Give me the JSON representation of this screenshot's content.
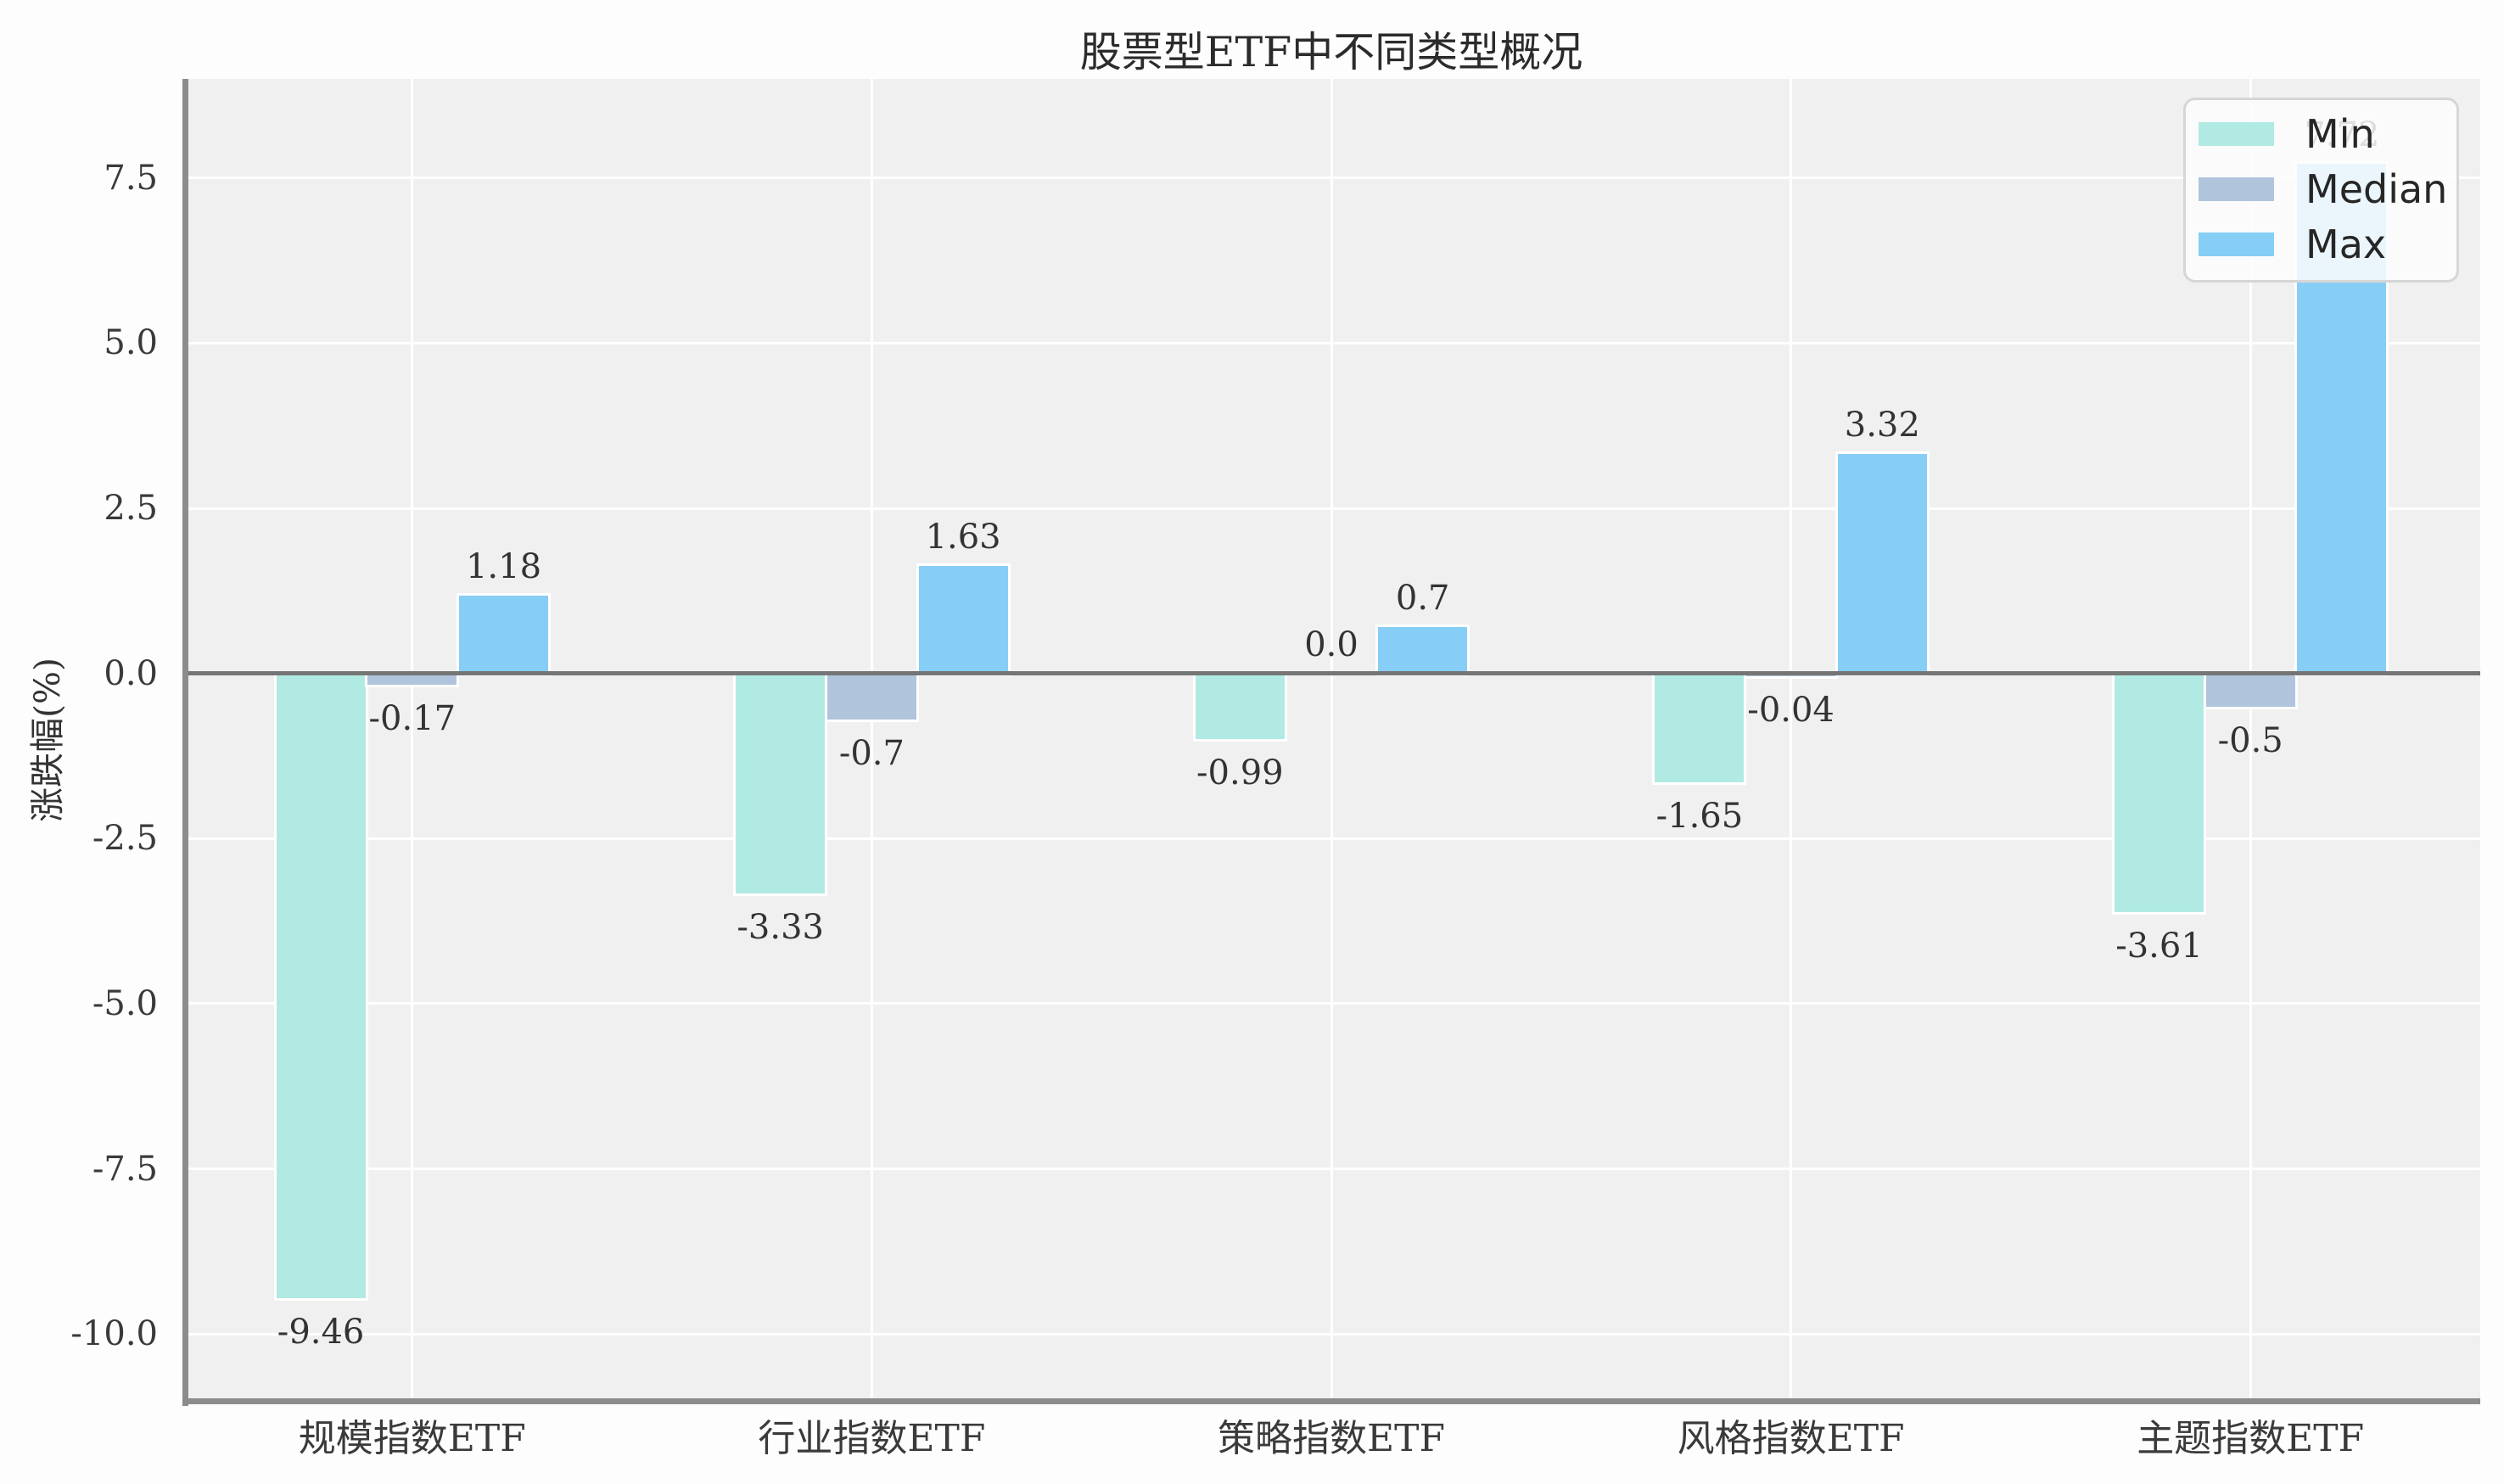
{
  "chart_data": {
    "type": "bar",
    "title": "股票型ETF中不同类型概况",
    "xlabel": "",
    "ylabel": "涨跌幅(%)",
    "categories": [
      "规模指数ETF",
      "行业指数ETF",
      "策略指数ETF",
      "风格指数ETF",
      "主题指数ETF"
    ],
    "series": [
      {
        "name": "Min",
        "color": "#b1eae3",
        "values": [
          -9.46,
          -3.33,
          -0.99,
          -1.65,
          -3.61
        ],
        "labels": [
          "-9.46",
          "-3.33",
          "-0.99",
          "-1.65",
          "-3.61"
        ]
      },
      {
        "name": "Median",
        "color": "#b0c4dc",
        "values": [
          -0.17,
          -0.7,
          0.0,
          -0.04,
          -0.5
        ],
        "labels": [
          "-0.17",
          "-0.7",
          "0.0",
          "-0.04",
          "-0.5"
        ]
      },
      {
        "name": "Max",
        "color": "#87cef7",
        "values": [
          1.18,
          1.63,
          0.7,
          3.32,
          7.72
        ],
        "labels": [
          "1.18",
          "1.63",
          "0.7",
          "3.32",
          "7.72"
        ]
      }
    ],
    "y_ticks": [
      7.5,
      5.0,
      2.5,
      0.0,
      -2.5,
      -5.0,
      -7.5,
      -10.0
    ],
    "y_tick_labels": [
      "7.5",
      "5.0",
      "2.5",
      "0.0",
      "-2.5",
      "-5.0",
      "-7.5",
      "-10.0"
    ],
    "ylim": [
      -11,
      9
    ],
    "grid": true,
    "legend_position": "top-right",
    "plot_background": "#f0f0f1",
    "zero_line_color": "#757575",
    "note": "Max label 7.72 of 主题指数ETF is partially hidden behind the legend"
  }
}
